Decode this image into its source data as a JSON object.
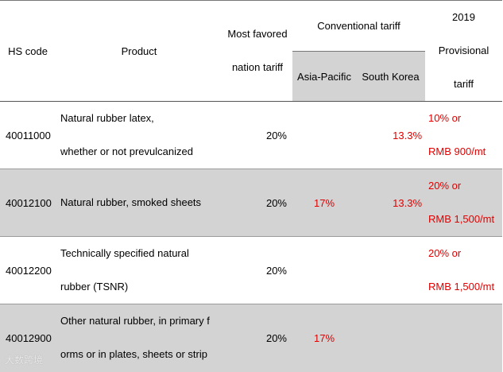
{
  "header": {
    "hs_code": "HS code",
    "product": "Product",
    "mfn_lines": [
      "Most favored",
      "nation tariff"
    ],
    "conventional": "Conventional tariff",
    "asia_pacific": "Asia-Pacific",
    "south_korea": "South Korea",
    "provisional_lines": [
      "2019",
      "Provisional",
      "tariff"
    ]
  },
  "rows": [
    {
      "hs_code": "40011000",
      "product_lines": [
        "Natural rubber  latex,",
        "whether or not prevulcanized"
      ],
      "mfn": "20%",
      "asia_pacific": "",
      "south_korea": "13.3%",
      "provisional_lines": [
        "10% or",
        "RMB 900/mt"
      ]
    },
    {
      "hs_code": "40012100",
      "product_lines": [
        "Natural rubber, smoked sheets"
      ],
      "mfn": "20%",
      "asia_pacific": "17%",
      "south_korea": "13.3%",
      "provisional_lines": [
        "20% or",
        "RMB 1,500/mt"
      ]
    },
    {
      "hs_code": "40012200",
      "product_lines": [
        "Technically  specified natural",
        "rubber (TSNR)"
      ],
      "mfn": "20%",
      "asia_pacific": "",
      "south_korea": "",
      "provisional_lines": [
        "20% or",
        "RMB 1,500/mt"
      ]
    },
    {
      "hs_code": "40012900",
      "product_lines": [
        "Other natural rubber, in primary f",
        "orms or in plates, sheets or strip"
      ],
      "mfn": "20%",
      "asia_pacific": "17%",
      "south_korea": "",
      "provisional_lines": []
    }
  ],
  "watermark": "大数跨境"
}
